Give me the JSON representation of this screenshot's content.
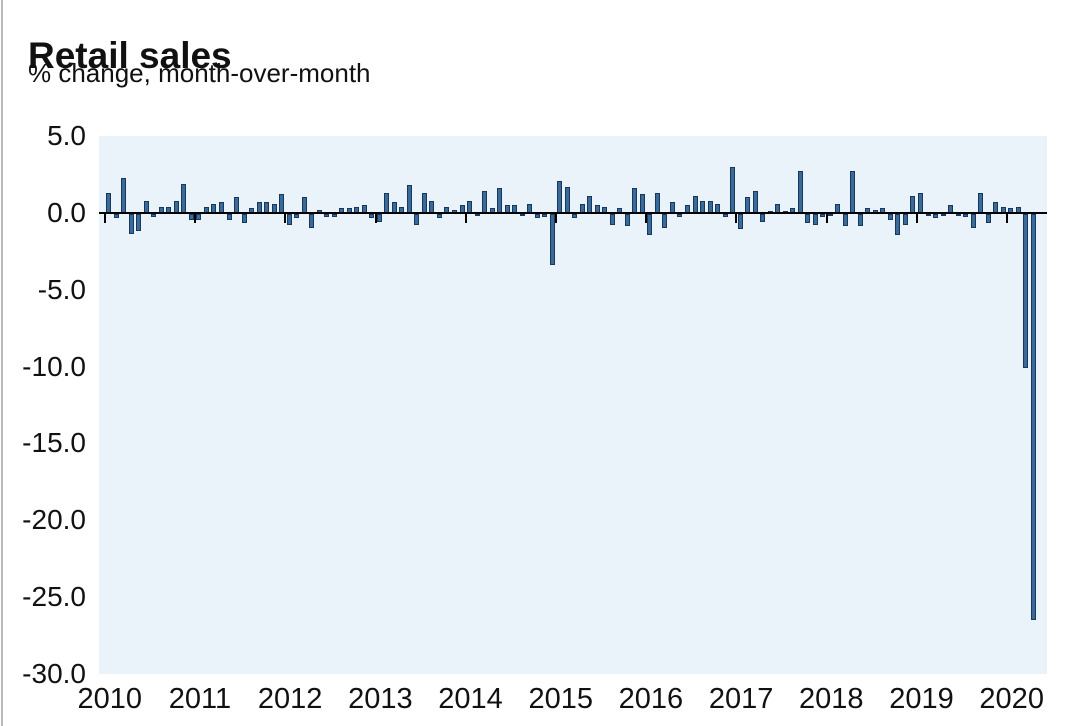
{
  "header": {
    "title": "Retail sales",
    "subtitle": "% change, month-over-month"
  },
  "chart_data": {
    "type": "bar",
    "title": "Retail sales",
    "subtitle": "% change, month-over-month",
    "unit": "% change, month-over-month",
    "legend": false,
    "grid": false,
    "ylim": [
      -30.0,
      5.0
    ],
    "y_tick_labels": [
      "5.0",
      "0.0",
      "-5.0",
      "-10.0",
      "-15.0",
      "-20.0",
      "-25.0",
      "-30.0"
    ],
    "y_tick_values": [
      5.0,
      0.0,
      -5.0,
      -10.0,
      -15.0,
      -20.0,
      -25.0,
      -30.0
    ],
    "x_tick_labels": [
      "2010",
      "2011",
      "2012",
      "2013",
      "2014",
      "2015",
      "2016",
      "2017",
      "2018",
      "2019",
      "2020"
    ],
    "bar_color": "#3a6a97",
    "bar_border_color": "#17375e",
    "plot_bg_color": "#eaf2fa",
    "axis_color": "#000000",
    "series": [
      {
        "year": "2010",
        "values": [
          1.3,
          -0.3,
          2.3,
          -1.3,
          -1.1,
          0.8,
          -0.2,
          0.4,
          0.4,
          0.8,
          1.9,
          -0.4
        ]
      },
      {
        "year": "2011",
        "values": [
          -0.4,
          0.4,
          0.6,
          0.7,
          -0.4,
          1.0,
          -0.6,
          0.3,
          0.7,
          0.7,
          0.6,
          1.2
        ]
      },
      {
        "year": "2012",
        "values": [
          -0.7,
          -0.3,
          1.0,
          -0.9,
          0.2,
          -0.2,
          -0.2,
          0.3,
          0.3,
          0.4,
          0.5,
          -0.3
        ]
      },
      {
        "year": "2013",
        "values": [
          -0.5,
          1.3,
          0.7,
          0.4,
          1.8,
          -0.7,
          1.3,
          0.8,
          -0.3,
          0.4,
          0.2,
          0.5
        ]
      },
      {
        "year": "2014",
        "values": [
          0.8,
          -0.1,
          1.4,
          0.3,
          1.6,
          0.5,
          0.5,
          -0.1,
          0.6,
          -0.3,
          -0.2,
          -3.3
        ]
      },
      {
        "year": "2015",
        "values": [
          2.1,
          1.7,
          -0.3,
          0.6,
          1.1,
          0.5,
          0.4,
          -0.7,
          0.3,
          -0.8,
          1.6,
          1.2
        ]
      },
      {
        "year": "2016",
        "values": [
          -1.4,
          1.3,
          -0.9,
          0.7,
          -0.2,
          0.5,
          1.1,
          0.8,
          0.8,
          0.6,
          -0.2,
          3.0
        ]
      },
      {
        "year": "2017",
        "values": [
          -1.0,
          1.0,
          1.4,
          -0.5,
          0.1,
          0.6,
          0.1,
          0.3,
          2.7,
          -0.6,
          -0.7,
          -0.2
        ]
      },
      {
        "year": "2018",
        "values": [
          -0.1,
          0.6,
          -0.8,
          2.7,
          -0.8,
          0.3,
          0.2,
          0.3,
          -0.4,
          -1.4,
          -0.7,
          1.1
        ]
      },
      {
        "year": "2019",
        "values": [
          1.3,
          -0.1,
          -0.3,
          -0.1,
          0.5,
          -0.1,
          -0.2,
          -0.9,
          1.3,
          -0.6,
          0.7,
          0.4
        ]
      },
      {
        "year": "2020",
        "values": [
          0.3,
          0.4,
          -10.0,
          -26.4
        ]
      }
    ]
  }
}
